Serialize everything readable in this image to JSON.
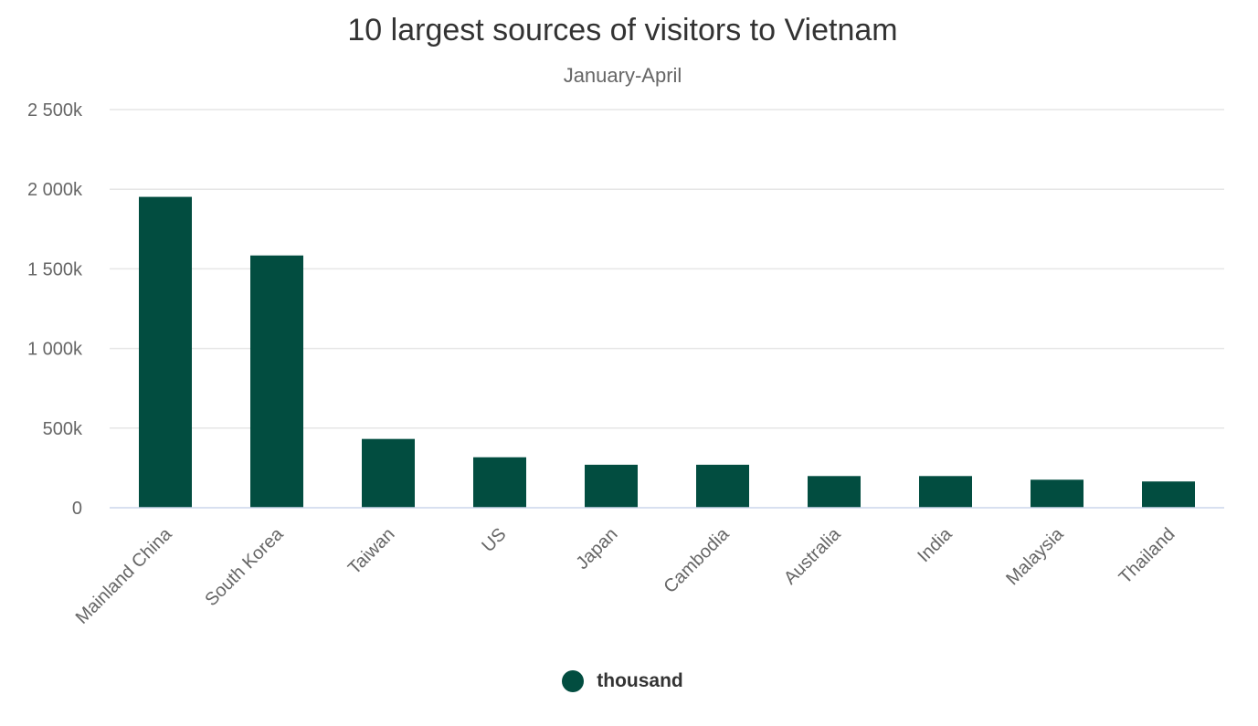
{
  "chart_data": {
    "type": "bar",
    "title": "10 largest sources of visitors to Vietnam",
    "subtitle": "January-April",
    "categories": [
      "Mainland China",
      "South Korea",
      "Taiwan",
      "US",
      "Japan",
      "Cambodia",
      "Australia",
      "India",
      "Malaysia",
      "Thailand"
    ],
    "series": [
      {
        "name": "thousand",
        "color": "#024d40",
        "values": [
          1952,
          1584,
          432,
          317,
          270,
          270,
          199,
          199,
          176,
          165
        ]
      }
    ],
    "y_ticks": [
      "0",
      "500k",
      "1 000k",
      "1 500k",
      "2 000k",
      "2 500k"
    ],
    "ylim": [
      0,
      2500
    ],
    "grid": true,
    "legend_position": "bottom-center",
    "colors": {
      "bar": "#024d40",
      "grid": "#e6e6e6",
      "axis": "#ccd6eb",
      "tick_text": "#666666"
    }
  }
}
